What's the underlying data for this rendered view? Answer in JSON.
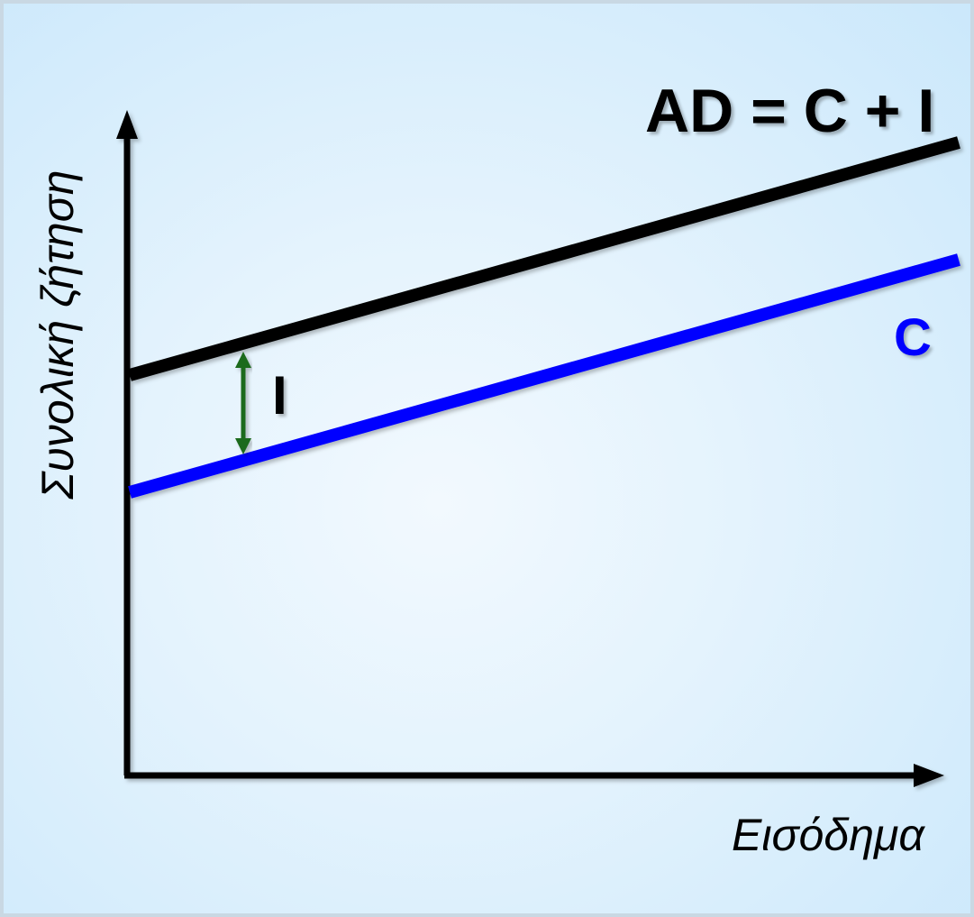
{
  "diagram": {
    "x_axis_label": "Εισόδημα",
    "y_axis_label": "Συνολική ζήτηση",
    "ad_label": "AD = C + I",
    "c_label": "C",
    "i_label": "I",
    "colors": {
      "ad_line": "#000000",
      "c_line": "#0000ff",
      "gap_arrow": "#1e6b1e",
      "axes": "#000000"
    }
  }
}
